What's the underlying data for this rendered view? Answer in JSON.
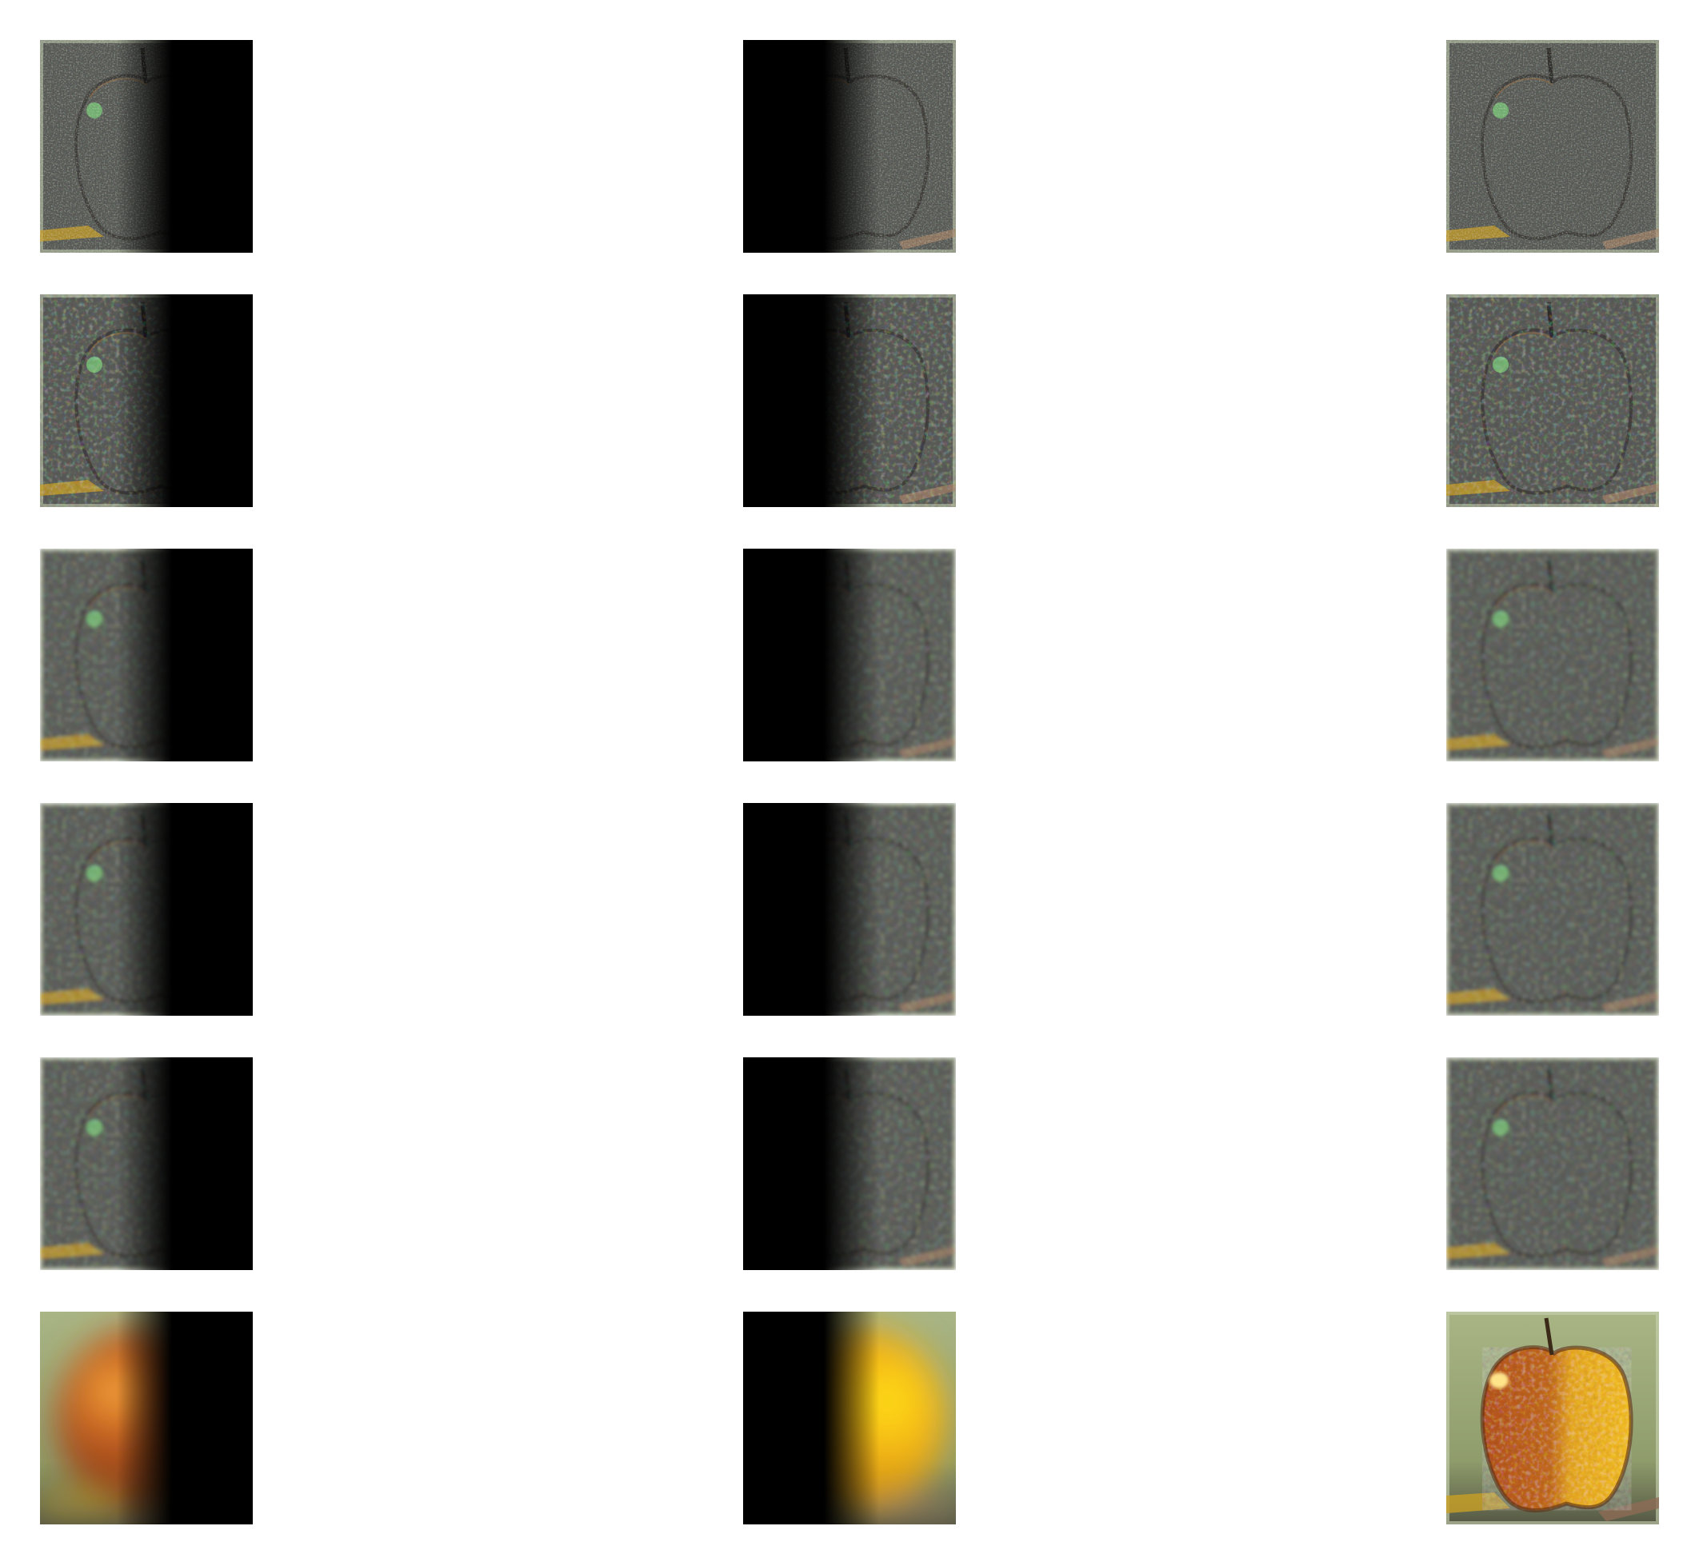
{
  "figure": {
    "description_type": "laplacian-pyramid-blend",
    "columns": [
      "apple-masked",
      "orange-masked",
      "blended"
    ],
    "levels": 6,
    "colors": {
      "background": "#ffffff",
      "mask_black": "#000000",
      "detail_gray": "#5a5c58",
      "edge_border": "#c9d3b4",
      "apple_red": "#b4531f",
      "apple_highlight": "#ffd35a",
      "orange_yellow": "#f5b614",
      "backdrop_green": "#8f9c6b",
      "highlight_green": "#7cc87a"
    }
  }
}
